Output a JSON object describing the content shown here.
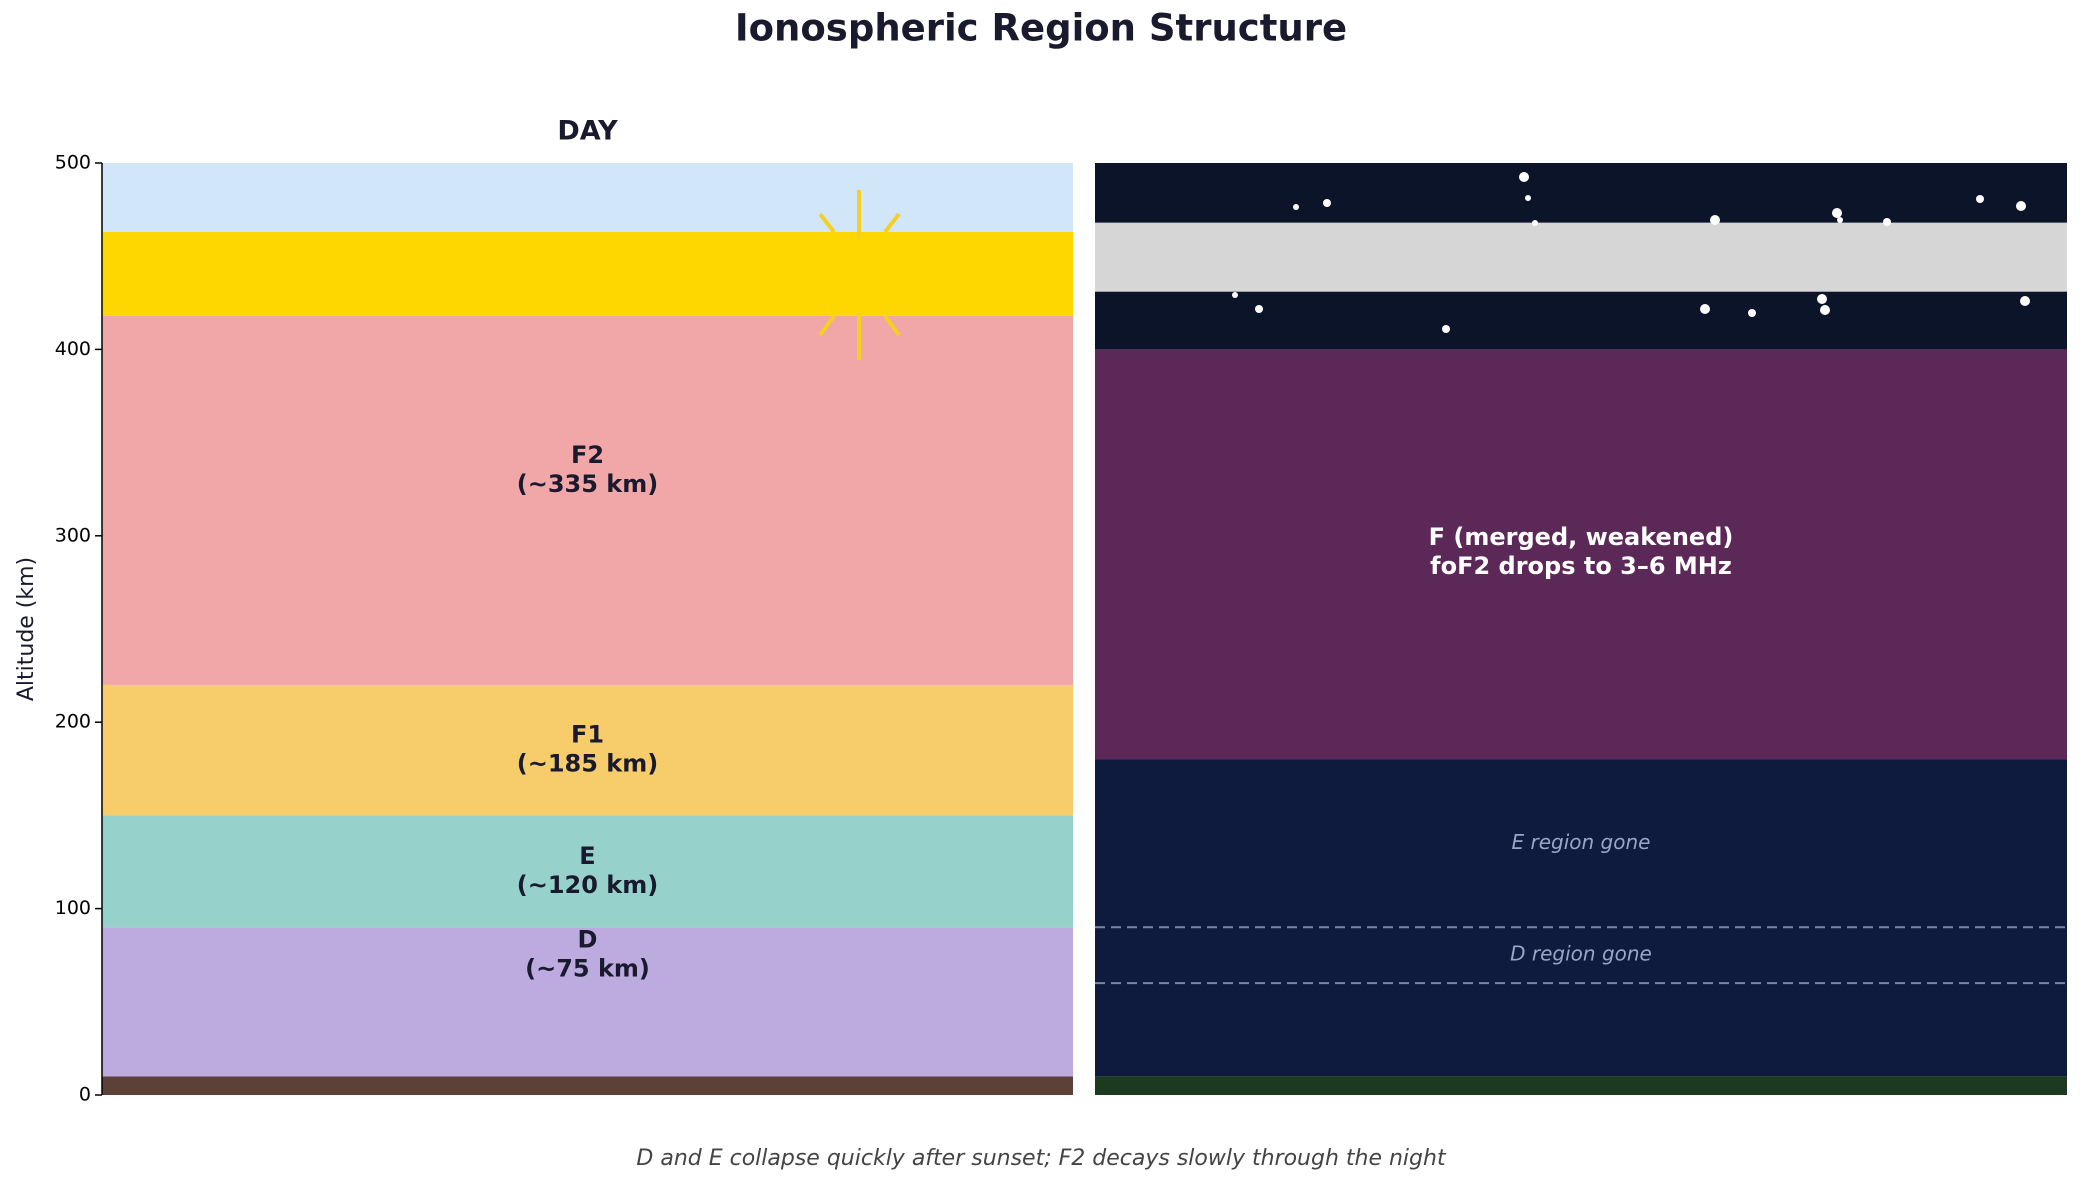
{
  "chart_data": {
    "type": "band",
    "title": "Ionospheric Region Structure",
    "caption": "D and E collapse quickly after sunset; F2 decays slowly through the night",
    "ylabel": "Altitude (km)",
    "ylim": [
      0,
      500
    ],
    "yticks": [
      0,
      100,
      200,
      300,
      400,
      500
    ],
    "panels": [
      {
        "title": "DAY",
        "axis": true,
        "bands": [
          {
            "range": [
              0,
              10
            ],
            "color": "#5d4037"
          },
          {
            "range": [
              10,
              90
            ],
            "color": "#bdaadf"
          },
          {
            "range": [
              90,
              150
            ],
            "color": "#96d1cc"
          },
          {
            "range": [
              150,
              220
            ],
            "color": "#f7cd6c"
          },
          {
            "range": [
              220,
              418
            ],
            "color": "#f1a7a8"
          },
          {
            "range": [
              418,
              463
            ],
            "color": "#ffd700"
          },
          {
            "range": [
              463,
              500
            ],
            "color": "#d1e6f8"
          }
        ],
        "dashed": [],
        "labels": [
          {
            "lines": [
              "F2",
              "(~335 km)"
            ],
            "y": 335,
            "color": "#1a1a2e",
            "style": "bold"
          },
          {
            "lines": [
              "F1",
              "(~185 km)"
            ],
            "y": 185,
            "color": "#1a1a2e",
            "style": "bold"
          },
          {
            "lines": [
              "E",
              "(~120 km)"
            ],
            "y": 120,
            "color": "#1a1a2e",
            "style": "bold"
          },
          {
            "lines": [
              "D",
              "(~75 km)"
            ],
            "y": 75,
            "color": "#1a1a2e",
            "style": "bold"
          }
        ]
      },
      {
        "axis": false,
        "bands": [
          {
            "range": [
              0,
              10
            ],
            "color": "#1b3a20"
          },
          {
            "range": [
              10,
              180
            ],
            "color": "#0e1a3e"
          },
          {
            "range": [
              180,
              400
            ],
            "color": "#5c2858"
          },
          {
            "range": [
              400,
              431
            ],
            "color": "#0b1428"
          },
          {
            "range": [
              431,
              468
            ],
            "color": "#d6d6d6"
          },
          {
            "range": [
              468,
              500
            ],
            "color": "#0b1428"
          }
        ],
        "dashed": [
          90,
          60
        ],
        "labels": [
          {
            "lines": [
              "F (merged, weakened)",
              "foF2 drops to 3–6 MHz"
            ],
            "y": 291,
            "color": "#ffffff",
            "style": "bold"
          },
          {
            "lines": [
              "E region gone"
            ],
            "y": 135,
            "color": "#9aa5c6",
            "style": "italic"
          },
          {
            "lines": [
              "D region gone"
            ],
            "y": 75,
            "color": "#9aa5c6",
            "style": "italic"
          }
        ]
      }
    ]
  }
}
